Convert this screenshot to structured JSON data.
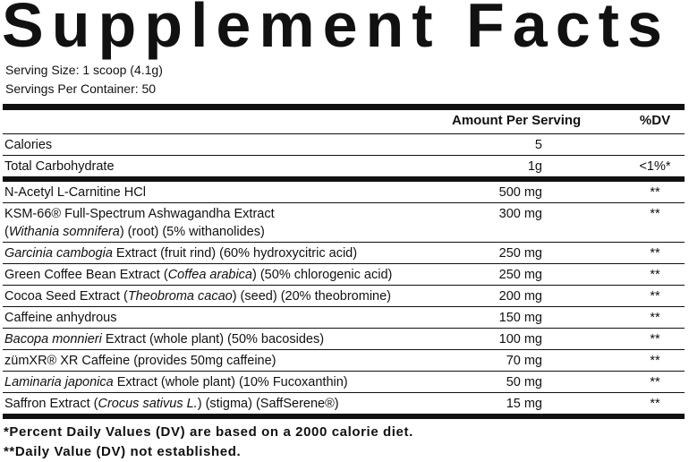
{
  "title": "Supplement Facts",
  "serving_size": "Serving Size: 1 scoop (4.1g)",
  "servings_per_container": "Servings Per Container: 50",
  "header": {
    "amount": "Amount Per Serving",
    "dv": "%DV"
  },
  "rows": [
    {
      "name": [
        [
          {
            "text": "Calories"
          }
        ]
      ],
      "amount": "5"
    },
    {
      "name": [
        [
          {
            "text": "Total Carbohydrate"
          }
        ]
      ],
      "amount": "1g",
      "dv": "<1%*"
    }
  ],
  "ingredients": [
    {
      "name": [
        [
          {
            "text": "N-Acetyl L-Carnitine HCl"
          }
        ]
      ],
      "amount": "500 mg",
      "dv": "**"
    },
    {
      "name": [
        [
          {
            "text": "KSM-66® Full-Spectrum Ashwagandha Extract"
          }
        ],
        [
          {
            "text": "("
          },
          {
            "text": "Withania somnifera",
            "italic": true
          },
          {
            "text": ") (root) (5% withanolides)"
          }
        ]
      ],
      "amount": "300 mg",
      "dv": "**"
    },
    {
      "name": [
        [
          {
            "text": "Garcinia cambogia",
            "italic": true
          },
          {
            "text": " Extract (fruit rind) (60% hydroxycitric acid)"
          }
        ]
      ],
      "amount": "250 mg",
      "dv": "**"
    },
    {
      "name": [
        [
          {
            "text": "Green Coffee Bean Extract ("
          },
          {
            "text": "Coffea arabica",
            "italic": true
          },
          {
            "text": ") (50% chlorogenic acid)"
          }
        ]
      ],
      "amount": "250 mg",
      "dv": "**"
    },
    {
      "name": [
        [
          {
            "text": "Cocoa Seed Extract ("
          },
          {
            "text": "Theobroma cacao",
            "italic": true
          },
          {
            "text": ") (seed) (20% theobromine)"
          }
        ]
      ],
      "amount": "200 mg",
      "dv": "**"
    },
    {
      "name": [
        [
          {
            "text": "Caffeine anhydrous"
          }
        ]
      ],
      "amount": "150 mg",
      "dv": "**"
    },
    {
      "name": [
        [
          {
            "text": "Bacopa monnieri",
            "italic": true
          },
          {
            "text": " Extract (whole plant) (50% bacosides)"
          }
        ]
      ],
      "amount": "100 mg",
      "dv": "**"
    },
    {
      "name": [
        [
          {
            "text": "zümXR® XR Caffeine (provides 50mg caffeine)"
          }
        ]
      ],
      "amount": "70 mg",
      "dv": "**"
    },
    {
      "name": [
        [
          {
            "text": "Laminaria japonica",
            "italic": true
          },
          {
            "text": " Extract (whole plant) (10% Fucoxanthin)"
          }
        ]
      ],
      "amount": "50 mg",
      "dv": "**"
    },
    {
      "name": [
        [
          {
            "text": "Saffron Extract ("
          },
          {
            "text": "Crocus sativus L.",
            "italic": true
          },
          {
            "text": ") (stigma) (SaffSerene®)"
          }
        ]
      ],
      "amount": "15 mg",
      "dv": "**"
    }
  ],
  "footnotes": [
    "*Percent Daily Values (DV) are based on a 2000 calorie diet.",
    "**Daily Value (DV) not established."
  ]
}
